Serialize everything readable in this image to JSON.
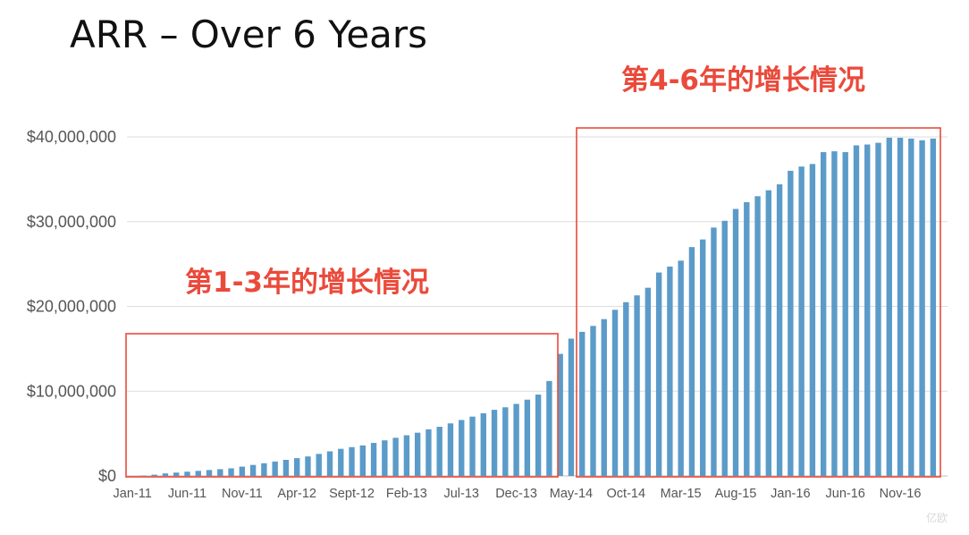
{
  "chart_data": {
    "type": "bar",
    "title": "ARR – Over 6 Years",
    "xlabel": "",
    "ylabel": "",
    "ylim": [
      0,
      40000000
    ],
    "yticks": [
      0,
      10000000,
      20000000,
      30000000,
      40000000
    ],
    "ytick_labels": [
      "$0",
      "$10,000,000",
      "$20,000,000",
      "$30,000,000",
      "$40,000,000"
    ],
    "xtick_labels": [
      "Jan-11",
      "Jun-11",
      "Nov-11",
      "Apr-12",
      "Sept-12",
      "Feb-13",
      "Jul-13",
      "Dec-13",
      "May-14",
      "Oct-14",
      "Mar-15",
      "Aug-15",
      "Jan-16",
      "Jun-16",
      "Nov-16"
    ],
    "xtick_every": 5,
    "grid": true,
    "bar_color": "#5b9bc9",
    "annotation_color": "#ea4a3b",
    "values": [
      0,
      50000,
      150000,
      300000,
      400000,
      500000,
      600000,
      700000,
      800000,
      900000,
      1100000,
      1300000,
      1500000,
      1700000,
      1900000,
      2100000,
      2300000,
      2600000,
      2900000,
      3200000,
      3400000,
      3600000,
      3900000,
      4200000,
      4500000,
      4800000,
      5100000,
      5500000,
      5800000,
      6200000,
      6600000,
      7000000,
      7400000,
      7800000,
      8100000,
      8500000,
      9000000,
      9600000,
      11200000,
      14400000,
      16200000,
      17000000,
      17700000,
      18500000,
      19600000,
      20500000,
      21300000,
      22200000,
      24000000,
      24700000,
      25400000,
      27000000,
      27900000,
      29300000,
      30100000,
      31500000,
      32300000,
      33000000,
      33700000,
      34400000,
      36000000,
      36500000,
      36800000,
      38200000,
      38300000,
      38200000,
      39000000,
      39100000,
      39300000,
      39900000,
      39900000,
      39800000,
      39600000,
      39800000
    ],
    "annotations": [
      {
        "text": "第1-3年的增长情况",
        "from": "Jan-11",
        "to": "Dec-13"
      },
      {
        "text": "第4-6年的增长情况",
        "from": "May-14",
        "to": "Nov-16"
      }
    ]
  }
}
